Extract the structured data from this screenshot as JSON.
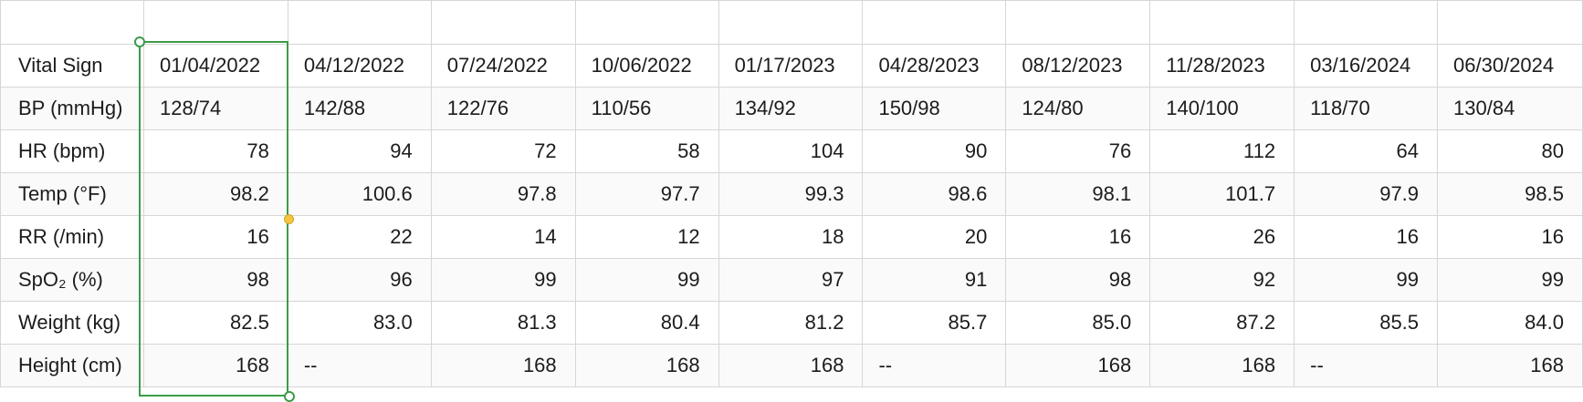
{
  "table": {
    "columns": [
      "Vital Sign",
      "01/04/2022",
      "04/12/2022",
      "07/24/2022",
      "10/06/2022",
      "01/17/2023",
      "04/28/2023",
      "08/12/2023",
      "11/28/2023",
      "03/16/2024",
      "06/30/2024"
    ],
    "rows": [
      {
        "label": "BP (mmHg)",
        "align": "left",
        "values": [
          "128/74",
          "142/88",
          "122/76",
          "110/56",
          "134/92",
          "150/98",
          "124/80",
          "140/100",
          "118/70",
          "130/84"
        ]
      },
      {
        "label": "HR (bpm)",
        "align": "right",
        "values": [
          "78",
          "94",
          "72",
          "58",
          "104",
          "90",
          "76",
          "112",
          "64",
          "80"
        ]
      },
      {
        "label": "Temp (°F)",
        "align": "right",
        "values": [
          "98.2",
          "100.6",
          "97.8",
          "97.7",
          "99.3",
          "98.6",
          "98.1",
          "101.7",
          "97.9",
          "98.5"
        ]
      },
      {
        "label": "RR (/min)",
        "align": "right",
        "values": [
          "16",
          "22",
          "14",
          "12",
          "18",
          "20",
          "16",
          "26",
          "16",
          "16"
        ]
      },
      {
        "label": "SpO₂ (%)",
        "align": "right",
        "values": [
          "98",
          "96",
          "99",
          "99",
          "97",
          "91",
          "98",
          "92",
          "99",
          "99"
        ]
      },
      {
        "label": "Weight (kg)",
        "align": "right",
        "values": [
          "82.5",
          "83.0",
          "81.3",
          "80.4",
          "81.2",
          "85.7",
          "85.0",
          "87.2",
          "85.5",
          "84.0"
        ]
      },
      {
        "label": "Height (cm)",
        "align": "mixed",
        "values": [
          "168",
          "--",
          "168",
          "168",
          "168",
          "--",
          "168",
          "168",
          "--",
          "168"
        ]
      }
    ]
  },
  "selection": {
    "range": "B2:B9",
    "border_color": "#3b9c48",
    "handle_color": "#f4c542"
  },
  "colors": {
    "gridline": "#d6d6d6",
    "text": "#1c1c1c",
    "row_alt": "#fafafa"
  }
}
